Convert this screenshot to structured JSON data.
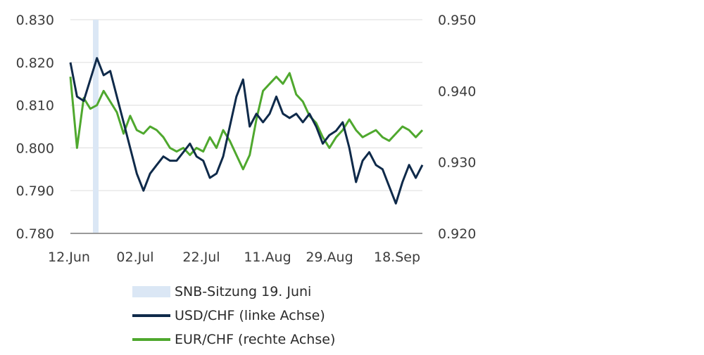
{
  "chart_data": {
    "type": "line",
    "title": "",
    "xlabel": "",
    "ylabel_left": "USD/CHF",
    "ylabel_right": "EUR/CHF",
    "x_tick_labels": [
      "12.Jun",
      "02.Jul",
      "22.Jul",
      "11.Aug",
      "29.Aug",
      "18.Sep"
    ],
    "y_left": {
      "ticks": [
        "0.780",
        "0.790",
        "0.800",
        "0.810",
        "0.820",
        "0.830"
      ],
      "range": [
        0.78,
        0.83
      ]
    },
    "y_right": {
      "ticks": [
        "0.920",
        "0.930",
        "0.940",
        "0.950"
      ],
      "range": [
        0.92,
        0.95
      ]
    },
    "grid": true,
    "legend_position": "bottom",
    "highlight_band": {
      "label": "SNB-Sitzung 19. Juni",
      "date": "19.Jun",
      "color": "#dbe7f5"
    },
    "series": [
      {
        "name": "USD/CHF (linke Achse)",
        "axis": "left",
        "color": "#0f2a4a",
        "dates": [
          "12.Jun",
          "14.Jun",
          "16.Jun",
          "18.Jun",
          "19.Jun",
          "21.Jun",
          "23.Jun",
          "25.Jun",
          "27.Jun",
          "29.Jun",
          "01.Jul",
          "03.Jul",
          "05.Jul",
          "07.Jul",
          "09.Jul",
          "11.Jul",
          "13.Jul",
          "15.Jul",
          "17.Jul",
          "19.Jul",
          "21.Jul",
          "23.Jul",
          "25.Jul",
          "27.Jul",
          "29.Jul",
          "31.Jul",
          "02.Aug",
          "04.Aug",
          "06.Aug",
          "08.Aug",
          "10.Aug",
          "12.Aug",
          "14.Aug",
          "16.Aug",
          "18.Aug",
          "20.Aug",
          "22.Aug",
          "24.Aug",
          "26.Aug",
          "28.Aug",
          "30.Aug",
          "01.Sep",
          "03.Sep",
          "05.Sep",
          "07.Sep",
          "09.Sep",
          "11.Sep",
          "13.Sep",
          "15.Sep",
          "17.Sep",
          "19.Sep",
          "21.Sep",
          "23.Sep",
          "25.Sep"
        ],
        "values": [
          0.82,
          0.812,
          0.811,
          0.816,
          0.821,
          0.817,
          0.818,
          0.812,
          0.806,
          0.8,
          0.794,
          0.79,
          0.794,
          0.796,
          0.798,
          0.797,
          0.797,
          0.799,
          0.801,
          0.798,
          0.797,
          0.793,
          0.794,
          0.798,
          0.805,
          0.812,
          0.816,
          0.805,
          0.808,
          0.806,
          0.808,
          0.812,
          0.808,
          0.807,
          0.808,
          0.806,
          0.808,
          0.805,
          0.801,
          0.803,
          0.804,
          0.806,
          0.8,
          0.792,
          0.797,
          0.799,
          0.796,
          0.795,
          0.791,
          0.787,
          0.792,
          0.796,
          0.793,
          0.796
        ]
      },
      {
        "name": "EUR/CHF (rechte Achse)",
        "axis": "right",
        "color": "#4fa82e",
        "dates": [
          "12.Jun",
          "14.Jun",
          "16.Jun",
          "18.Jun",
          "19.Jun",
          "21.Jun",
          "23.Jun",
          "25.Jun",
          "27.Jun",
          "29.Jun",
          "01.Jul",
          "03.Jul",
          "05.Jul",
          "07.Jul",
          "09.Jul",
          "11.Jul",
          "13.Jul",
          "15.Jul",
          "17.Jul",
          "19.Jul",
          "21.Jul",
          "23.Jul",
          "25.Jul",
          "27.Jul",
          "29.Jul",
          "31.Jul",
          "02.Aug",
          "04.Aug",
          "06.Aug",
          "08.Aug",
          "10.Aug",
          "12.Aug",
          "14.Aug",
          "16.Aug",
          "18.Aug",
          "20.Aug",
          "22.Aug",
          "24.Aug",
          "26.Aug",
          "28.Aug",
          "30.Aug",
          "01.Sep",
          "03.Sep",
          "05.Sep",
          "07.Sep",
          "09.Sep",
          "11.Sep",
          "13.Sep",
          "15.Sep",
          "17.Sep",
          "19.Sep",
          "21.Sep",
          "23.Sep",
          "25.Sep"
        ],
        "values": [
          0.942,
          0.932,
          0.939,
          0.9375,
          0.938,
          0.94,
          0.9385,
          0.937,
          0.934,
          0.9365,
          0.9345,
          0.934,
          0.935,
          0.9345,
          0.9335,
          0.932,
          0.9315,
          0.932,
          0.931,
          0.932,
          0.9315,
          0.9335,
          0.932,
          0.9345,
          0.933,
          0.931,
          0.929,
          0.931,
          0.936,
          0.94,
          0.941,
          0.942,
          0.941,
          0.9425,
          0.9395,
          0.9385,
          0.9365,
          0.9355,
          0.9335,
          0.932,
          0.9335,
          0.9345,
          0.936,
          0.9345,
          0.9335,
          0.934,
          0.9345,
          0.9335,
          0.933,
          0.934,
          0.935,
          0.9345,
          0.9335,
          0.9345
        ]
      }
    ]
  },
  "legend": {
    "items": [
      {
        "label": "SNB-Sitzung 19. Juni",
        "kind": "band",
        "color": "#dbe7f5"
      },
      {
        "label": "USD/CHF (linke Achse)",
        "kind": "line",
        "color": "#0f2a4a"
      },
      {
        "label": "EUR/CHF (rechte Achse)",
        "kind": "line",
        "color": "#4fa82e"
      }
    ]
  }
}
